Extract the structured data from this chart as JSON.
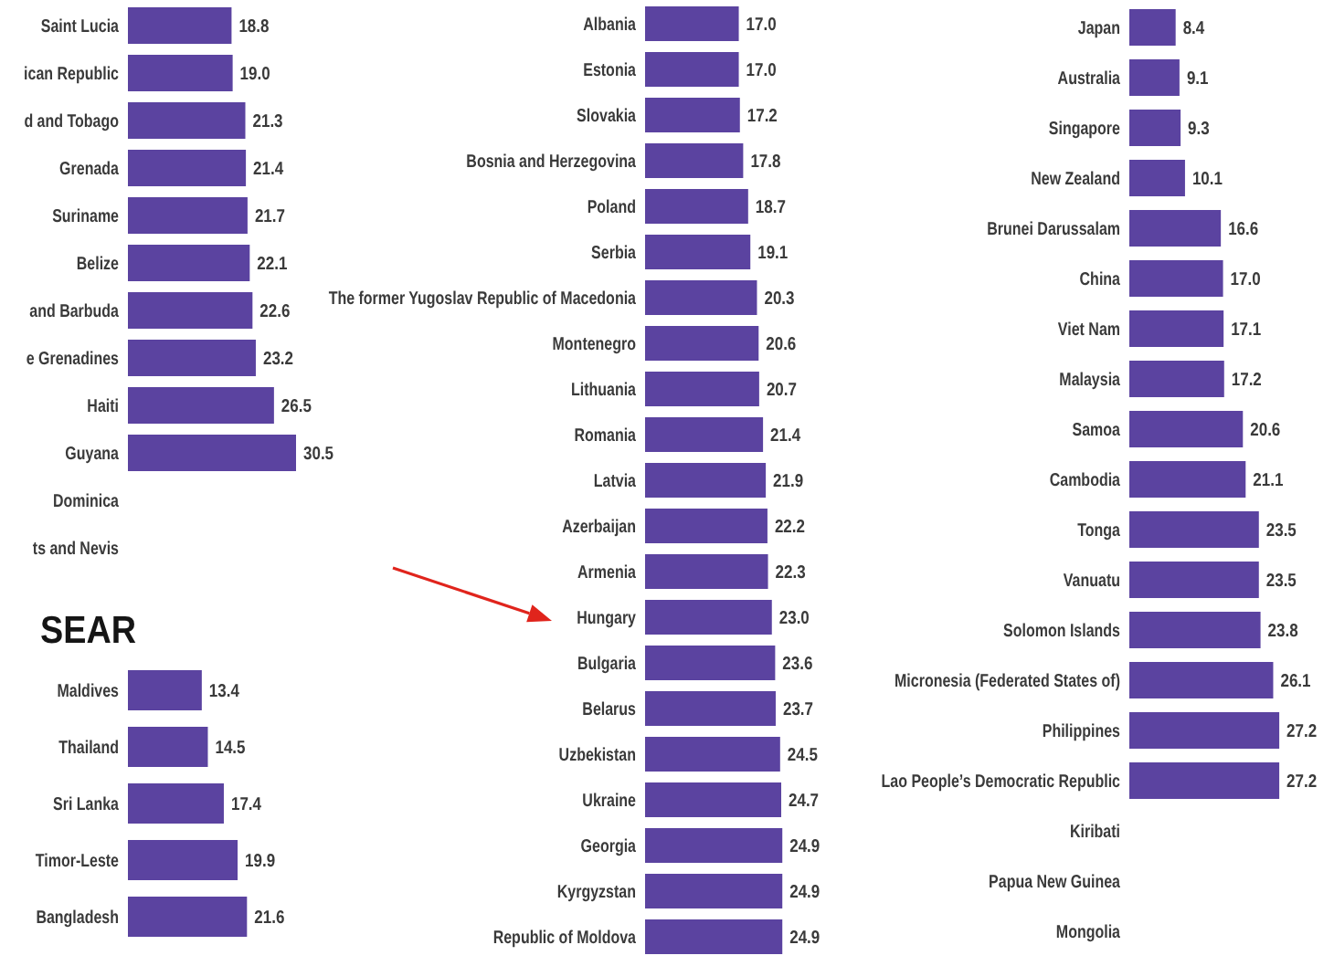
{
  "chart_data": [
    {
      "type": "bar",
      "orientation": "horizontal",
      "categories": [
        "Saint Lucia",
        "ican Republic",
        "d and Tobago",
        "Grenada",
        "Suriname",
        "Belize",
        "and Barbuda",
        "e Grenadines",
        "Haiti",
        "Guyana",
        "Dominica",
        "ts and Nevis"
      ],
      "values": [
        18.8,
        19.0,
        21.3,
        21.4,
        21.7,
        22.1,
        22.6,
        23.2,
        26.5,
        30.5,
        null,
        null
      ],
      "value_labels": [
        "18.8",
        "19.0",
        "21.3",
        "21.4",
        "21.7",
        "22.1",
        "22.6",
        "23.2",
        "26.5",
        "30.5",
        null,
        null
      ],
      "color": "#5b43a0"
    },
    {
      "type": "bar",
      "orientation": "horizontal",
      "title": "SEAR",
      "categories": [
        "Maldives",
        "Thailand",
        "Sri Lanka",
        "Timor-Leste",
        "Bangladesh"
      ],
      "values": [
        13.4,
        14.5,
        17.4,
        19.9,
        21.6
      ],
      "value_labels": [
        "13.4",
        "14.5",
        "17.4",
        "19.9",
        "21.6"
      ],
      "color": "#5b43a0"
    },
    {
      "type": "bar",
      "orientation": "horizontal",
      "categories": [
        "Albania",
        "Estonia",
        "Slovakia",
        "Bosnia and Herzegovina",
        "Poland",
        "Serbia",
        "The former Yugoslav Republic of Macedonia",
        "Montenegro",
        "Lithuania",
        "Romania",
        "Latvia",
        "Azerbaijan",
        "Armenia",
        "Hungary",
        "Bulgaria",
        "Belarus",
        "Uzbekistan",
        "Ukraine",
        "Georgia",
        "Kyrgyzstan",
        "Republic of Moldova"
      ],
      "values": [
        17.0,
        17.0,
        17.2,
        17.8,
        18.7,
        19.1,
        20.3,
        20.6,
        20.7,
        21.4,
        21.9,
        22.2,
        22.3,
        23.0,
        23.6,
        23.7,
        24.5,
        24.7,
        24.9,
        24.9,
        24.9
      ],
      "value_labels": [
        "17.0",
        "17.0",
        "17.2",
        "17.8",
        "18.7",
        "19.1",
        "20.3",
        "20.6",
        "20.7",
        "21.4",
        "21.9",
        "22.2",
        "22.3",
        "23.0",
        "23.6",
        "23.7",
        "24.5",
        "24.7",
        "24.9",
        "24.9",
        "24.9"
      ],
      "color": "#5b43a0"
    },
    {
      "type": "bar",
      "orientation": "horizontal",
      "categories": [
        "Japan",
        "Australia",
        "Singapore",
        "New Zealand",
        "Brunei Darussalam",
        "China",
        "Viet Nam",
        "Malaysia",
        "Samoa",
        "Cambodia",
        "Tonga",
        "Vanuatu",
        "Solomon Islands",
        "Micronesia (Federated States of)",
        "Philippines",
        "Lao People’s Democratic Republic",
        "Kiribati",
        "Papua New Guinea",
        "Mongolia"
      ],
      "values": [
        8.4,
        9.1,
        9.3,
        10.1,
        16.6,
        17.0,
        17.1,
        17.2,
        20.6,
        21.1,
        23.5,
        23.5,
        23.8,
        26.1,
        27.2,
        27.2,
        null,
        null,
        null
      ],
      "value_labels": [
        "8.4",
        "9.1",
        "9.3",
        "10.1",
        "16.6",
        "17.0",
        "17.1",
        "17.2",
        "20.6",
        "21.1",
        "23.5",
        "23.5",
        "23.8",
        "26.1",
        "27.2",
        "27.2",
        null,
        null,
        null
      ],
      "color": "#5b43a0"
    }
  ]
}
